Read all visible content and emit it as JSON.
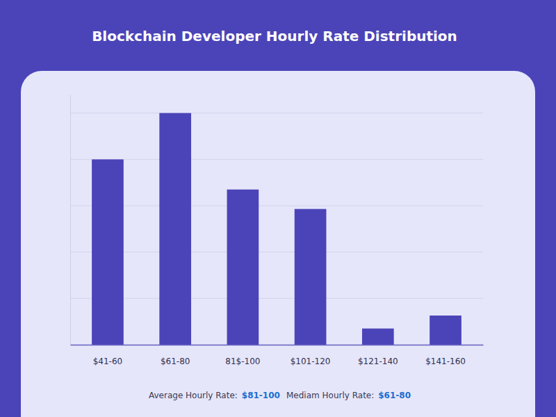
{
  "chart_data": {
    "type": "bar",
    "title": "Blockchain Developer Hourly Rate Distribution",
    "categories": [
      "$41-60",
      "$61-80",
      "81$-100",
      "$101-120",
      "$121-140",
      "$141-160"
    ],
    "values": [
      4.0,
      5.0,
      3.35,
      2.93,
      0.35,
      0.63
    ],
    "color": "#4b44b8",
    "ylim": [
      0,
      5.4
    ],
    "yticks": [
      0,
      1,
      2,
      3,
      4,
      5
    ],
    "grid": true,
    "tick_labels": "x",
    "annotations": [
      {
        "label": "Average Hourly Rate:",
        "value": "$81-100"
      },
      {
        "label": "Mediam Hourly Rate:",
        "value": "$61-80"
      }
    ]
  }
}
